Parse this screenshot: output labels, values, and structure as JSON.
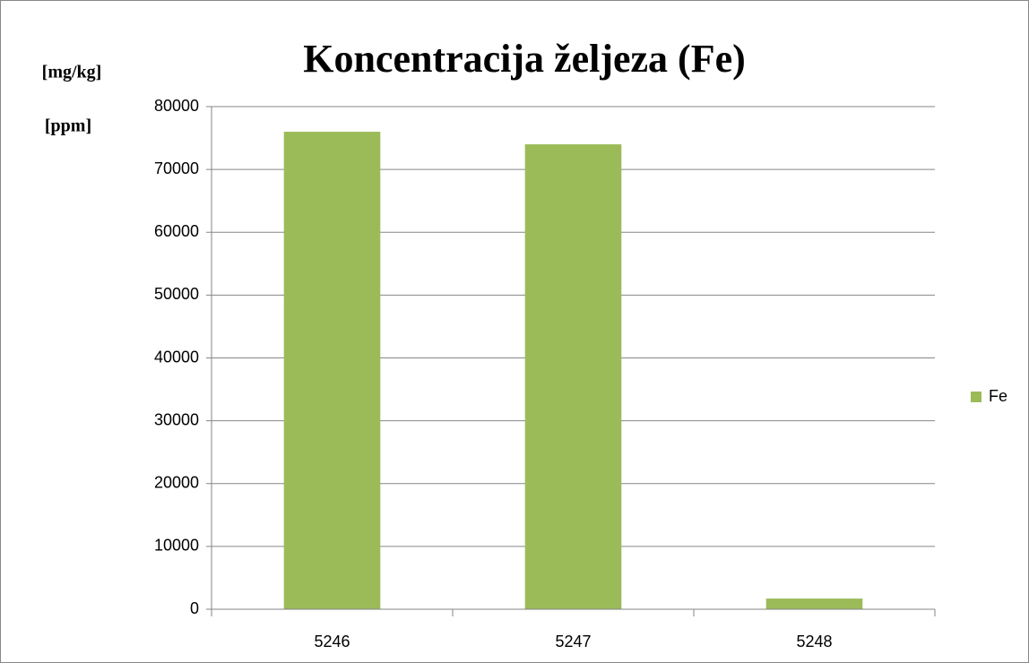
{
  "chart_data": {
    "type": "bar",
    "title": "Koncentracija željeza (Fe)",
    "y_axis_label": [
      "[mg/kg]",
      "[ppm]"
    ],
    "categories": [
      "5246",
      "5247",
      "5248"
    ],
    "series": [
      {
        "name": "Fe",
        "color": "#9bbb59",
        "values": [
          76000,
          74000,
          1700
        ]
      }
    ],
    "ylim": [
      0,
      80000
    ],
    "yticks": [
      0,
      10000,
      20000,
      30000,
      40000,
      50000,
      60000,
      70000,
      80000
    ],
    "grid": true,
    "legend": "right"
  }
}
